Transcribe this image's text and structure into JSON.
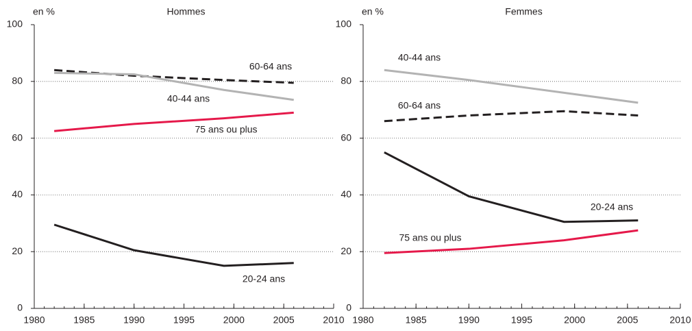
{
  "chart_data": [
    {
      "type": "line",
      "title": "Hommes",
      "y_label": "en %",
      "x": [
        1982,
        1990,
        1999,
        2006
      ],
      "series": [
        {
          "name": "60-64 ans",
          "color": "#231f20",
          "style": "dashed",
          "values": [
            84,
            82,
            80.5,
            79.5
          ]
        },
        {
          "name": "40-44 ans",
          "color": "#b3b3b3",
          "style": "solid",
          "values": [
            83,
            82.5,
            77,
            73.5
          ]
        },
        {
          "name": "75 ans ou plus",
          "color": "#e5194a",
          "style": "solid",
          "values": [
            62.5,
            65,
            67,
            69
          ]
        },
        {
          "name": "20-24 ans",
          "color": "#231f20",
          "style": "solid",
          "values": [
            29.5,
            20.5,
            15,
            16
          ]
        }
      ],
      "xlim": [
        1980,
        2010
      ],
      "xticks": [
        1980,
        1985,
        1990,
        1995,
        2000,
        2005,
        2010
      ],
      "ylim": [
        0,
        100
      ],
      "yticks": [
        0,
        20,
        40,
        60,
        80,
        100
      ],
      "grid": true
    },
    {
      "type": "line",
      "title": "Femmes",
      "y_label": "en %",
      "x": [
        1982,
        1990,
        1999,
        2006
      ],
      "series": [
        {
          "name": "40-44 ans",
          "color": "#b3b3b3",
          "style": "solid",
          "values": [
            84,
            80.5,
            76,
            72.5
          ]
        },
        {
          "name": "60-64 ans",
          "color": "#231f20",
          "style": "dashed",
          "values": [
            66,
            68,
            69.5,
            68
          ]
        },
        {
          "name": "20-24 ans",
          "color": "#231f20",
          "style": "solid",
          "values": [
            55,
            39.5,
            30.5,
            31
          ]
        },
        {
          "name": "75 ans ou plus",
          "color": "#e5194a",
          "style": "solid",
          "values": [
            19.5,
            21,
            24,
            27.5
          ]
        }
      ],
      "xlim": [
        1980,
        2010
      ],
      "xticks": [
        1980,
        1985,
        1990,
        1995,
        2000,
        2005,
        2010
      ],
      "ylim": [
        0,
        100
      ],
      "yticks": [
        0,
        20,
        40,
        60,
        80,
        100
      ],
      "grid": true
    }
  ]
}
